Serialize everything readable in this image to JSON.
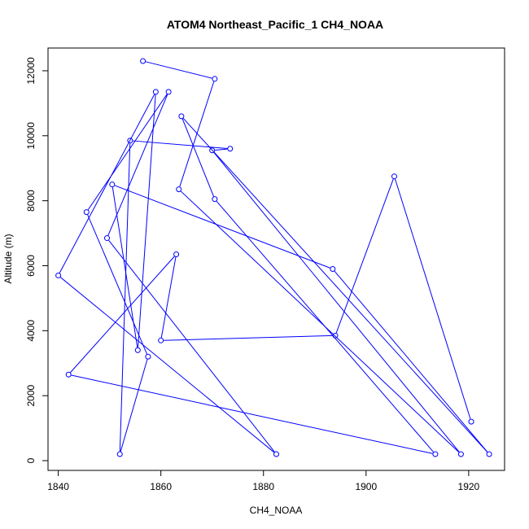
{
  "chart_data": {
    "type": "line",
    "title": "ATOM4 Northeast_Pacific_1 CH4_NOAA",
    "xlabel": "CH4_NOAA",
    "ylabel": "Altitude (m)",
    "xlim": [
      1838,
      1927
    ],
    "ylim": [
      -300,
      12700
    ],
    "x_ticks": [
      1840,
      1860,
      1880,
      1900,
      1920
    ],
    "y_ticks": [
      0,
      2000,
      4000,
      6000,
      8000,
      10000,
      12000
    ],
    "grid": false,
    "series": [
      {
        "color": "#0000ff",
        "markers": "open-circle",
        "points": [
          {
            "x": 1856.5,
            "y": 12300
          },
          {
            "x": 1870.5,
            "y": 11750
          },
          {
            "x": 1863.5,
            "y": 8350
          },
          {
            "x": 1918.5,
            "y": 200
          },
          {
            "x": 1870.0,
            "y": 9550
          },
          {
            "x": 1873.5,
            "y": 9600
          },
          {
            "x": 1854.0,
            "y": 9850
          },
          {
            "x": 1852.0,
            "y": 200
          },
          {
            "x": 1857.5,
            "y": 3200
          },
          {
            "x": 1845.5,
            "y": 7650
          },
          {
            "x": 1861.5,
            "y": 11350
          },
          {
            "x": 1849.5,
            "y": 6850
          },
          {
            "x": 1882.5,
            "y": 200
          },
          {
            "x": 1840.0,
            "y": 5700
          },
          {
            "x": 1859.0,
            "y": 11350
          },
          {
            "x": 1855.5,
            "y": 3400
          },
          {
            "x": 1850.5,
            "y": 8500
          },
          {
            "x": 1893.5,
            "y": 5900
          },
          {
            "x": 1924.0,
            "y": 200
          },
          {
            "x": 1864.0,
            "y": 10600
          },
          {
            "x": 1870.5,
            "y": 8050
          },
          {
            "x": 1913.5,
            "y": 200
          },
          {
            "x": 1842.0,
            "y": 2650
          },
          {
            "x": 1863.0,
            "y": 6350
          },
          {
            "x": 1860.0,
            "y": 3700
          },
          {
            "x": 1894.0,
            "y": 3850
          },
          {
            "x": 1905.5,
            "y": 8750
          },
          {
            "x": 1920.5,
            "y": 1200
          }
        ]
      }
    ]
  }
}
